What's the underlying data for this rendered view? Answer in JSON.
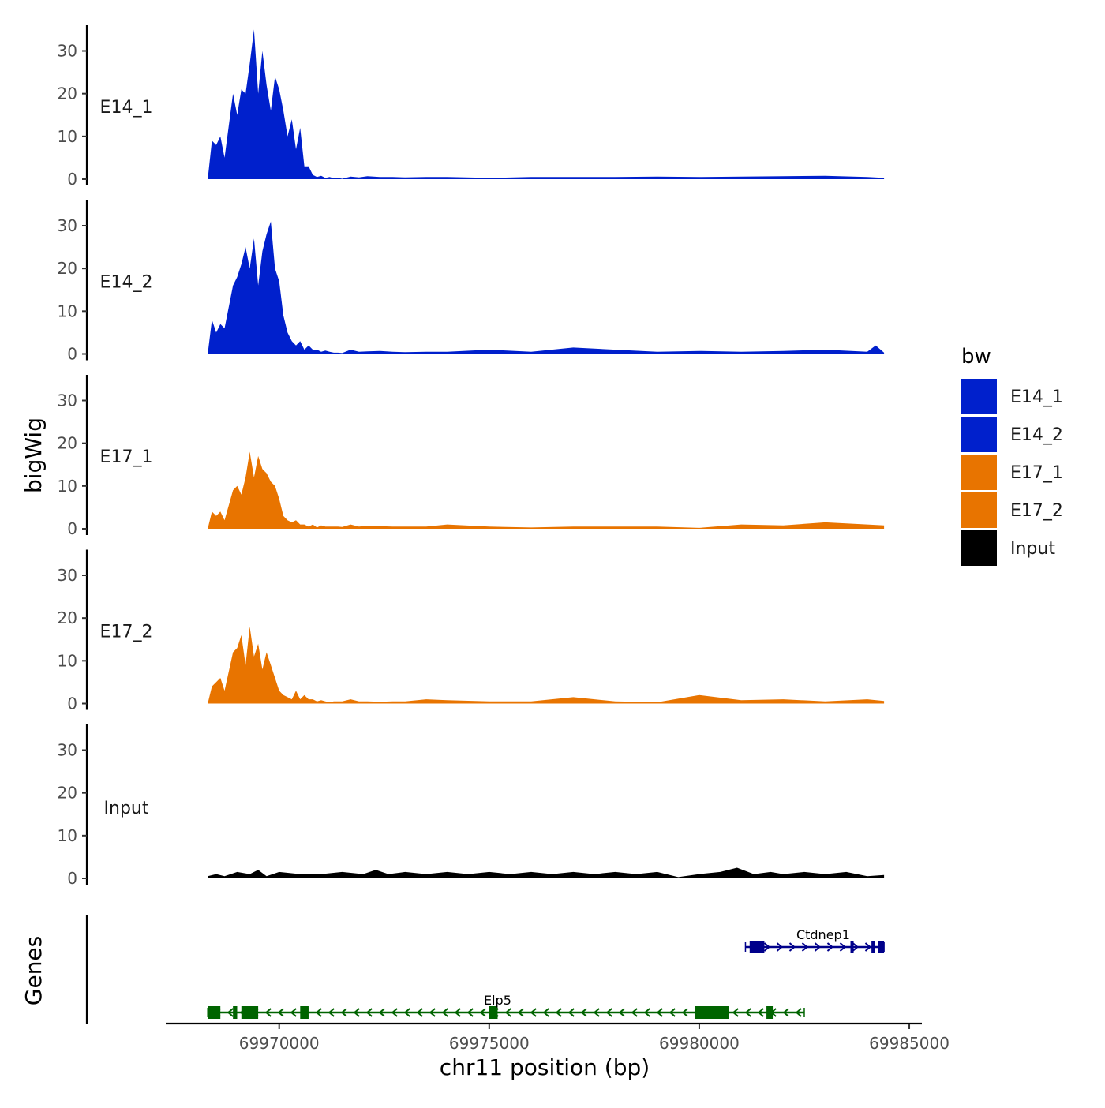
{
  "chart_data": {
    "type": "area",
    "ylabel": "bigWig",
    "xlabel": "chr11 position (bp)",
    "genes_label": "Genes",
    "y_ticks": [
      0,
      10,
      20,
      30
    ],
    "ylim": [
      0,
      36
    ],
    "xlim": [
      69967300,
      69985300
    ],
    "x_ticks": [
      69970000,
      69975000,
      69980000,
      69985000
    ],
    "x_tick_labels": [
      "69970000",
      "69975000",
      "69980000",
      "69985000"
    ],
    "region": [
      69968300,
      69984400
    ],
    "legend": {
      "title": "bw",
      "entries": [
        {
          "label": "E14_1",
          "color": "#0020CC"
        },
        {
          "label": "E14_2",
          "color": "#0020CC"
        },
        {
          "label": "E17_1",
          "color": "#E87400"
        },
        {
          "label": "E17_2",
          "color": "#E87400"
        },
        {
          "label": "Input",
          "color": "#000000"
        }
      ]
    },
    "tracks": [
      {
        "name": "E14_1",
        "color": "#0020CC",
        "x": [
          69968300,
          69968400,
          69968500,
          69968600,
          69968700,
          69968900,
          69969000,
          69969100,
          69969200,
          69969300,
          69969400,
          69969500,
          69969600,
          69969700,
          69969800,
          69969900,
          69970000,
          69970100,
          69970200,
          69970300,
          69970400,
          69970500,
          69970600,
          69970700,
          69970800,
          69970900,
          69971000,
          69971100,
          69971200,
          69971300,
          69971400,
          69971500,
          69971700,
          69971900,
          69972100,
          69972400,
          69972700,
          69973000,
          69973500,
          69974000,
          69975000,
          69976000,
          69977000,
          69978000,
          69979000,
          69980000,
          69981000,
          69982000,
          69983000,
          69984000,
          69984400
        ],
        "y": [
          0,
          9,
          8,
          10,
          5,
          20,
          15,
          21,
          20,
          27,
          35,
          20,
          30,
          22,
          16,
          24,
          21,
          16,
          10,
          14,
          7,
          12,
          3,
          3,
          1,
          0.5,
          0.8,
          0.3,
          0.5,
          0.2,
          0.3,
          0.1,
          0.6,
          0.4,
          0.7,
          0.5,
          0.5,
          0.4,
          0.5,
          0.5,
          0.3,
          0.5,
          0.5,
          0.5,
          0.6,
          0.5,
          0.6,
          0.7,
          0.8,
          0.5,
          0.3
        ]
      },
      {
        "name": "E14_2",
        "color": "#0020CC",
        "x": [
          69968300,
          69968400,
          69968500,
          69968600,
          69968700,
          69968900,
          69969000,
          69969100,
          69969200,
          69969300,
          69969400,
          69969500,
          69969600,
          69969700,
          69969800,
          69969900,
          69970000,
          69970100,
          69970200,
          69970300,
          69970400,
          69970500,
          69970600,
          69970700,
          69970800,
          69970900,
          69971000,
          69971100,
          69971200,
          69971300,
          69971400,
          69971500,
          69971700,
          69971900,
          69972100,
          69972400,
          69972700,
          69973000,
          69973500,
          69974000,
          69975000,
          69976000,
          69977000,
          69978000,
          69979000,
          69980000,
          69981000,
          69982000,
          69983000,
          69984000,
          69984200,
          69984400
        ],
        "y": [
          0,
          8,
          5,
          7,
          6,
          16,
          18,
          21,
          25,
          20,
          27,
          16,
          24,
          28,
          31,
          20,
          17,
          9,
          5,
          3,
          2,
          3,
          1,
          2,
          1,
          1,
          0.5,
          0.8,
          0.5,
          0.3,
          0.3,
          0.2,
          1,
          0.5,
          0.6,
          0.7,
          0.5,
          0.4,
          0.5,
          0.5,
          1,
          0.5,
          1.5,
          1,
          0.5,
          0.7,
          0.5,
          0.7,
          1,
          0.5,
          2,
          0.3
        ]
      },
      {
        "name": "E17_1",
        "color": "#E87400",
        "x": [
          69968300,
          69968400,
          69968500,
          69968600,
          69968700,
          69968900,
          69969000,
          69969100,
          69969200,
          69969300,
          69969400,
          69969500,
          69969600,
          69969700,
          69969800,
          69969900,
          69970000,
          69970100,
          69970200,
          69970300,
          69970400,
          69970500,
          69970600,
          69970700,
          69970800,
          69970900,
          69971000,
          69971100,
          69971200,
          69971300,
          69971400,
          69971500,
          69971700,
          69971900,
          69972100,
          69972400,
          69972700,
          69973000,
          69973500,
          69974000,
          69975000,
          69976000,
          69977000,
          69978000,
          69979000,
          69980000,
          69981000,
          69982000,
          69983000,
          69984000,
          69984400
        ],
        "y": [
          0,
          4,
          3,
          4,
          2,
          9,
          10,
          8,
          12,
          18,
          12,
          17,
          14,
          13,
          11,
          10,
          7,
          3,
          2,
          1.5,
          2,
          1,
          1,
          0.5,
          1,
          0.3,
          0.8,
          0.5,
          0.5,
          0.5,
          0.5,
          0.4,
          1,
          0.5,
          0.7,
          0.6,
          0.5,
          0.5,
          0.5,
          1,
          0.5,
          0.3,
          0.5,
          0.5,
          0.5,
          0.2,
          1,
          0.8,
          1.5,
          1,
          0.8
        ]
      },
      {
        "name": "E17_2",
        "color": "#E87400",
        "x": [
          69968300,
          69968400,
          69968500,
          69968600,
          69968700,
          69968900,
          69969000,
          69969100,
          69969200,
          69969300,
          69969400,
          69969500,
          69969600,
          69969700,
          69969800,
          69969900,
          69970000,
          69970100,
          69970200,
          69970300,
          69970400,
          69970500,
          69970600,
          69970700,
          69970800,
          69970900,
          69971000,
          69971100,
          69971200,
          69971300,
          69971400,
          69971500,
          69971700,
          69971900,
          69972100,
          69972400,
          69972700,
          69973000,
          69973500,
          69974000,
          69975000,
          69976000,
          69977000,
          69978000,
          69979000,
          69980000,
          69981000,
          69982000,
          69983000,
          69984000,
          69984400
        ],
        "y": [
          0,
          4,
          5,
          6,
          3,
          12,
          13,
          16,
          9,
          18,
          11,
          14,
          8,
          12,
          9,
          6,
          3,
          2,
          1.5,
          1,
          3,
          1,
          2,
          1,
          1,
          0.5,
          0.8,
          0.5,
          0.3,
          0.5,
          0.5,
          0.5,
          1,
          0.5,
          0.5,
          0.4,
          0.5,
          0.5,
          1,
          0.8,
          0.5,
          0.5,
          1.5,
          0.5,
          0.3,
          2,
          0.8,
          1,
          0.5,
          1,
          0.6
        ]
      },
      {
        "name": "Input",
        "color": "#000000",
        "x": [
          69968300,
          69968500,
          69968700,
          69969000,
          69969300,
          69969500,
          69969700,
          69970000,
          69970500,
          69971000,
          69971500,
          69972000,
          69972300,
          69972600,
          69973000,
          69973500,
          69974000,
          69974500,
          69975000,
          69975500,
          69976000,
          69976500,
          69977000,
          69977500,
          69978000,
          69978500,
          69979000,
          69979500,
          69980000,
          69980500,
          69980900,
          69981300,
          69981700,
          69982000,
          69982500,
          69983000,
          69983500,
          69984000,
          69984400
        ],
        "y": [
          0.5,
          1,
          0.5,
          1.5,
          1,
          2,
          0.5,
          1.5,
          1,
          1,
          1.5,
          1,
          2,
          1,
          1.5,
          1,
          1.5,
          1,
          1.5,
          1,
          1.5,
          1,
          1.5,
          1,
          1.5,
          1,
          1.5,
          0.3,
          1,
          1.5,
          2.5,
          1,
          1.5,
          1,
          1.5,
          1,
          1.5,
          0.5,
          0.8
        ]
      }
    ],
    "genes": [
      {
        "name": "Ctdnep1",
        "strand": "+",
        "color": "#00008B",
        "start": 69981100,
        "end": 69984400,
        "exons": [
          [
            69981200,
            69981550
          ],
          [
            69983600,
            69983650
          ],
          [
            69984100,
            69984160
          ],
          [
            69984250,
            69984400
          ]
        ]
      },
      {
        "name": "Elp5",
        "strand": "-",
        "color": "#006400",
        "start": 69968300,
        "end": 69982500,
        "exons": [
          [
            69968300,
            69968600
          ],
          [
            69968900,
            69969000
          ],
          [
            69969100,
            69969500
          ],
          [
            69970500,
            69970700
          ],
          [
            69975000,
            69975200
          ],
          [
            69979900,
            69980700
          ],
          [
            69981600,
            69981750
          ]
        ]
      }
    ]
  }
}
